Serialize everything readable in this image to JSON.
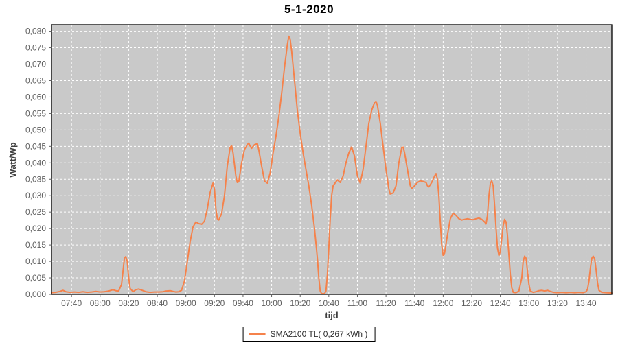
{
  "chart_data": {
    "type": "line",
    "title": "5-1-2020",
    "xlabel": "tijd",
    "ylabel": "Watt/Wp",
    "x_range": {
      "start_min": 446,
      "end_min": 838
    },
    "ylim": [
      0,
      0.082
    ],
    "grid": {
      "shown": true,
      "style": "dashed",
      "color": "#ffffff"
    },
    "legend_position": "bottom-center",
    "colors": {
      "series": "#f5824b",
      "plot_background": "#c9c9c9",
      "gridline": "#ffffff",
      "plot_border": "#000000",
      "tick_text": "#5f5f5f",
      "axis_label_text": "#3f3f3f",
      "title_text": "#000000"
    },
    "y_ticks": [
      {
        "value": 0.0,
        "label": "0,000"
      },
      {
        "value": 0.005,
        "label": "0,005"
      },
      {
        "value": 0.01,
        "label": "0,010"
      },
      {
        "value": 0.015,
        "label": "0,015"
      },
      {
        "value": 0.02,
        "label": "0,020"
      },
      {
        "value": 0.025,
        "label": "0,025"
      },
      {
        "value": 0.03,
        "label": "0,030"
      },
      {
        "value": 0.035,
        "label": "0,035"
      },
      {
        "value": 0.04,
        "label": "0,040"
      },
      {
        "value": 0.045,
        "label": "0,045"
      },
      {
        "value": 0.05,
        "label": "0,050"
      },
      {
        "value": 0.055,
        "label": "0,055"
      },
      {
        "value": 0.06,
        "label": "0,060"
      },
      {
        "value": 0.065,
        "label": "0,065"
      },
      {
        "value": 0.07,
        "label": "0,070"
      },
      {
        "value": 0.075,
        "label": "0,075"
      },
      {
        "value": 0.08,
        "label": "0,080"
      }
    ],
    "x_ticks": [
      {
        "minute": 460,
        "label": "07:40"
      },
      {
        "minute": 480,
        "label": "08:00"
      },
      {
        "minute": 500,
        "label": "08:20"
      },
      {
        "minute": 520,
        "label": "08:40"
      },
      {
        "minute": 540,
        "label": "09:00"
      },
      {
        "minute": 560,
        "label": "09:20"
      },
      {
        "minute": 580,
        "label": "09:40"
      },
      {
        "minute": 600,
        "label": "10:00"
      },
      {
        "minute": 620,
        "label": "10:20"
      },
      {
        "minute": 640,
        "label": "10:40"
      },
      {
        "minute": 660,
        "label": "11:00"
      },
      {
        "minute": 680,
        "label": "11:20"
      },
      {
        "minute": 700,
        "label": "11:40"
      },
      {
        "minute": 720,
        "label": "12:00"
      },
      {
        "minute": 740,
        "label": "12:20"
      },
      {
        "minute": 760,
        "label": "12:40"
      },
      {
        "minute": 780,
        "label": "13:00"
      },
      {
        "minute": 800,
        "label": "13:20"
      },
      {
        "minute": 820,
        "label": "13:40"
      }
    ],
    "series": [
      {
        "name": "SMA2100 TL( 0,267 kWh )",
        "color": "#f5824b",
        "points_min_value": [
          [
            446,
            0.0005
          ],
          [
            449,
            0.0006
          ],
          [
            452,
            0.0009
          ],
          [
            454,
            0.0012
          ],
          [
            456,
            0.0008
          ],
          [
            459,
            0.0006
          ],
          [
            462,
            0.0007
          ],
          [
            465,
            0.0006
          ],
          [
            468,
            0.0008
          ],
          [
            471,
            0.0006
          ],
          [
            474,
            0.0007
          ],
          [
            477,
            0.0009
          ],
          [
            480,
            0.0007
          ],
          [
            483,
            0.0008
          ],
          [
            486,
            0.001
          ],
          [
            489,
            0.0014
          ],
          [
            491,
            0.0011
          ],
          [
            493,
            0.001
          ],
          [
            495,
            0.003
          ],
          [
            496,
            0.007
          ],
          [
            497,
            0.011
          ],
          [
            498,
            0.0115
          ],
          [
            499,
            0.01
          ],
          [
            500,
            0.005
          ],
          [
            501,
            0.0018
          ],
          [
            503,
            0.0008
          ],
          [
            505,
            0.0014
          ],
          [
            507,
            0.0016
          ],
          [
            509,
            0.0013
          ],
          [
            512,
            0.0008
          ],
          [
            515,
            0.0006
          ],
          [
            518,
            0.0007
          ],
          [
            521,
            0.0007
          ],
          [
            524,
            0.0008
          ],
          [
            526,
            0.001
          ],
          [
            529,
            0.0011
          ],
          [
            531,
            0.0009
          ],
          [
            533,
            0.0007
          ],
          [
            535,
            0.0008
          ],
          [
            537,
            0.0012
          ],
          [
            539,
            0.004
          ],
          [
            541,
            0.01
          ],
          [
            543,
            0.016
          ],
          [
            545,
            0.0205
          ],
          [
            547,
            0.022
          ],
          [
            549,
            0.0215
          ],
          [
            551,
            0.0213
          ],
          [
            553,
            0.0222
          ],
          [
            555,
            0.026
          ],
          [
            557,
            0.031
          ],
          [
            559,
            0.0338
          ],
          [
            560,
            0.032
          ],
          [
            561,
            0.026
          ],
          [
            562,
            0.023
          ],
          [
            563,
            0.0226
          ],
          [
            565,
            0.0245
          ],
          [
            567,
            0.03
          ],
          [
            569,
            0.039
          ],
          [
            571,
            0.0447
          ],
          [
            572,
            0.0452
          ],
          [
            573,
            0.043
          ],
          [
            575,
            0.036
          ],
          [
            576,
            0.034
          ],
          [
            577,
            0.0342
          ],
          [
            579,
            0.04
          ],
          [
            581,
            0.044
          ],
          [
            583,
            0.0455
          ],
          [
            584,
            0.046
          ],
          [
            585,
            0.045
          ],
          [
            586,
            0.0444
          ],
          [
            588,
            0.0455
          ],
          [
            590,
            0.0458
          ],
          [
            591,
            0.044
          ],
          [
            593,
            0.039
          ],
          [
            595,
            0.0345
          ],
          [
            597,
            0.0338
          ],
          [
            599,
            0.037
          ],
          [
            601,
            0.043
          ],
          [
            603,
            0.048
          ],
          [
            605,
            0.054
          ],
          [
            607,
            0.061
          ],
          [
            609,
            0.069
          ],
          [
            611,
            0.076
          ],
          [
            612,
            0.0785
          ],
          [
            613,
            0.0775
          ],
          [
            614,
            0.074
          ],
          [
            616,
            0.065
          ],
          [
            618,
            0.056
          ],
          [
            620,
            0.049
          ],
          [
            622,
            0.043
          ],
          [
            624,
            0.038
          ],
          [
            626,
            0.033
          ],
          [
            628,
            0.027
          ],
          [
            630,
            0.02
          ],
          [
            632,
            0.011
          ],
          [
            633,
            0.005
          ],
          [
            634,
            0.001
          ],
          [
            635,
            0.0002
          ],
          [
            637,
            0.0002
          ],
          [
            638,
            0.001
          ],
          [
            639,
            0.006
          ],
          [
            640,
            0.014
          ],
          [
            641,
            0.023
          ],
          [
            642,
            0.03
          ],
          [
            643,
            0.033
          ],
          [
            644,
            0.0336
          ],
          [
            646,
            0.0348
          ],
          [
            648,
            0.034
          ],
          [
            650,
            0.036
          ],
          [
            652,
            0.04
          ],
          [
            654,
            0.043
          ],
          [
            656,
            0.0448
          ],
          [
            658,
            0.042
          ],
          [
            660,
            0.036
          ],
          [
            662,
            0.0338
          ],
          [
            664,
            0.038
          ],
          [
            666,
            0.045
          ],
          [
            668,
            0.052
          ],
          [
            670,
            0.056
          ],
          [
            672,
            0.0583
          ],
          [
            673,
            0.0587
          ],
          [
            674,
            0.0575
          ],
          [
            676,
            0.052
          ],
          [
            678,
            0.045
          ],
          [
            680,
            0.038
          ],
          [
            682,
            0.032
          ],
          [
            683,
            0.0305
          ],
          [
            685,
            0.0308
          ],
          [
            687,
            0.033
          ],
          [
            689,
            0.04
          ],
          [
            691,
            0.0445
          ],
          [
            692,
            0.0448
          ],
          [
            693,
            0.043
          ],
          [
            695,
            0.038
          ],
          [
            697,
            0.033
          ],
          [
            698,
            0.0322
          ],
          [
            700,
            0.033
          ],
          [
            702,
            0.034
          ],
          [
            704,
            0.0345
          ],
          [
            706,
            0.0343
          ],
          [
            708,
            0.034
          ],
          [
            709,
            0.033
          ],
          [
            710,
            0.0327
          ],
          [
            712,
            0.034
          ],
          [
            714,
            0.036
          ],
          [
            715,
            0.0367
          ],
          [
            716,
            0.035
          ],
          [
            717,
            0.03
          ],
          [
            718,
            0.022
          ],
          [
            719,
            0.015
          ],
          [
            720,
            0.0118
          ],
          [
            721,
            0.0125
          ],
          [
            723,
            0.018
          ],
          [
            725,
            0.023
          ],
          [
            727,
            0.0247
          ],
          [
            729,
            0.024
          ],
          [
            731,
            0.023
          ],
          [
            733,
            0.0226
          ],
          [
            735,
            0.0228
          ],
          [
            737,
            0.023
          ],
          [
            739,
            0.0228
          ],
          [
            741,
            0.0227
          ],
          [
            743,
            0.023
          ],
          [
            745,
            0.0232
          ],
          [
            747,
            0.0228
          ],
          [
            749,
            0.022
          ],
          [
            750,
            0.0214
          ],
          [
            751,
            0.024
          ],
          [
            752,
            0.03
          ],
          [
            753,
            0.0338
          ],
          [
            754,
            0.0345
          ],
          [
            755,
            0.033
          ],
          [
            756,
            0.027
          ],
          [
            757,
            0.02
          ],
          [
            758,
            0.014
          ],
          [
            759,
            0.0118
          ],
          [
            760,
            0.013
          ],
          [
            761,
            0.017
          ],
          [
            762,
            0.021
          ],
          [
            763,
            0.0228
          ],
          [
            764,
            0.022
          ],
          [
            765,
            0.018
          ],
          [
            766,
            0.012
          ],
          [
            767,
            0.006
          ],
          [
            768,
            0.002
          ],
          [
            769,
            0.0006
          ],
          [
            771,
            0.0005
          ],
          [
            773,
            0.001
          ],
          [
            775,
            0.005
          ],
          [
            776,
            0.01
          ],
          [
            777,
            0.0116
          ],
          [
            778,
            0.011
          ],
          [
            779,
            0.007
          ],
          [
            780,
            0.003
          ],
          [
            781,
            0.001
          ],
          [
            783,
            0.0006
          ],
          [
            785,
            0.0008
          ],
          [
            787,
            0.0011
          ],
          [
            789,
            0.0012
          ],
          [
            791,
            0.001
          ],
          [
            793,
            0.0012
          ],
          [
            795,
            0.0009
          ],
          [
            797,
            0.0006
          ],
          [
            800,
            0.0005
          ],
          [
            803,
            0.0006
          ],
          [
            806,
            0.0005
          ],
          [
            809,
            0.0006
          ],
          [
            812,
            0.0005
          ],
          [
            815,
            0.0006
          ],
          [
            818,
            0.0005
          ],
          [
            820,
            0.0008
          ],
          [
            821,
            0.0015
          ],
          [
            822,
            0.004
          ],
          [
            823,
            0.008
          ],
          [
            824,
            0.011
          ],
          [
            825,
            0.0116
          ],
          [
            826,
            0.0108
          ],
          [
            827,
            0.0075
          ],
          [
            828,
            0.0035
          ],
          [
            829,
            0.0012
          ],
          [
            831,
            0.0006
          ],
          [
            834,
            0.0005
          ],
          [
            838,
            0.0004
          ]
        ]
      }
    ]
  },
  "legend": {
    "entries": [
      {
        "label": "SMA2100 TL( 0,267 kWh )"
      }
    ]
  }
}
